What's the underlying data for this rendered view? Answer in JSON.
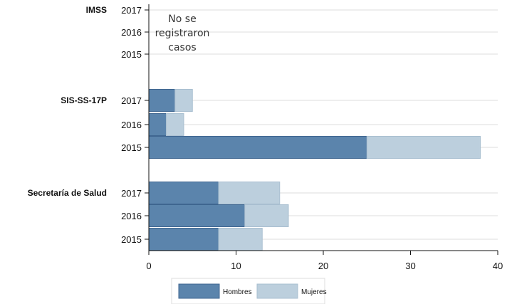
{
  "chart_data": {
    "type": "bar",
    "orientation": "horizontal",
    "stacked": true,
    "xlim": [
      0,
      40
    ],
    "x_ticks": [
      0,
      10,
      20,
      30,
      40
    ],
    "grid": true,
    "legend_position": "bottom",
    "series": [
      {
        "name": "Hombres",
        "color": "#5b84ac"
      },
      {
        "name": "Mujeres",
        "color": "#bccfdd"
      }
    ],
    "groups": [
      {
        "label": "IMSS",
        "annotation": [
          "No se",
          "registraron",
          "casos"
        ],
        "rows": [
          {
            "year": "2017",
            "hombres": 0,
            "mujeres": 0
          },
          {
            "year": "2016",
            "hombres": 0,
            "mujeres": 0
          },
          {
            "year": "2015",
            "hombres": 0,
            "mujeres": 0
          }
        ]
      },
      {
        "label": "SIS-SS-17P",
        "rows": [
          {
            "year": "2017",
            "hombres": 3,
            "mujeres": 2
          },
          {
            "year": "2016",
            "hombres": 2,
            "mujeres": 2
          },
          {
            "year": "2015",
            "hombres": 25,
            "mujeres": 13
          }
        ]
      },
      {
        "label": "Secretaría de Salud",
        "rows": [
          {
            "year": "2017",
            "hombres": 8,
            "mujeres": 7
          },
          {
            "year": "2016",
            "hombres": 11,
            "mujeres": 5
          },
          {
            "year": "2015",
            "hombres": 8,
            "mujeres": 5
          }
        ]
      }
    ]
  }
}
